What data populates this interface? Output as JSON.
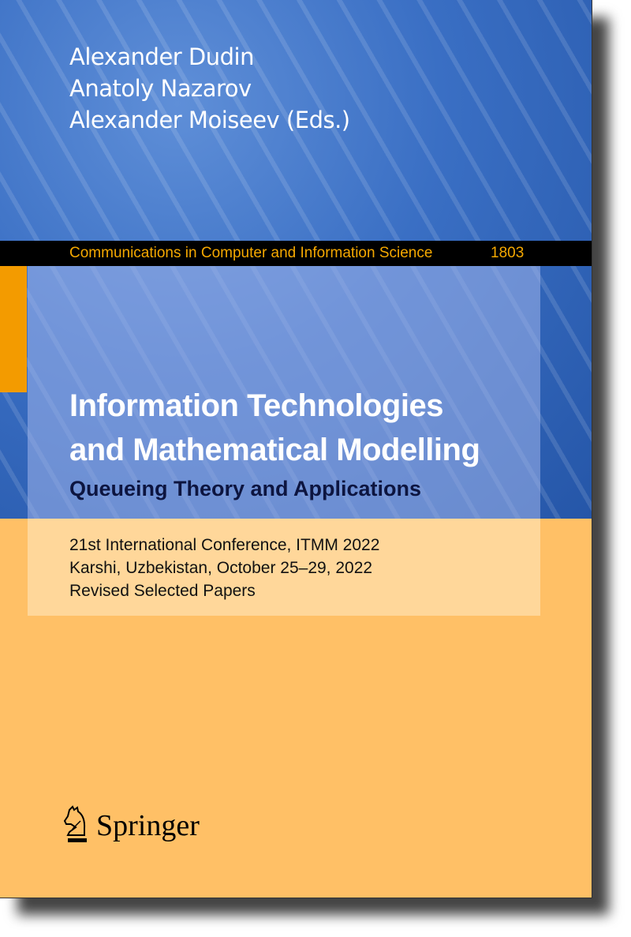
{
  "authors": [
    "Alexander Dudin",
    "Anatoly Nazarov",
    "Alexander Moiseev (Eds.)"
  ],
  "series": {
    "name": "Communications in Computer and Information Science",
    "number": "1803"
  },
  "title": {
    "line1": "Information Technologies",
    "line2": "and Mathematical Modelling",
    "subtitle": "Queueing Theory and Applications"
  },
  "conference": [
    "21st International Conference, ITMM 2022",
    "Karshi, Uzbekistan, October 25–29, 2022",
    "Revised Selected Papers"
  ],
  "publisher": {
    "name": "Springer",
    "icon": "springer-horse-icon"
  },
  "colors": {
    "blue": "#3A6FC4",
    "orange": "#FFC066",
    "series_text": "#F5A800",
    "tab": "#F39B00"
  }
}
